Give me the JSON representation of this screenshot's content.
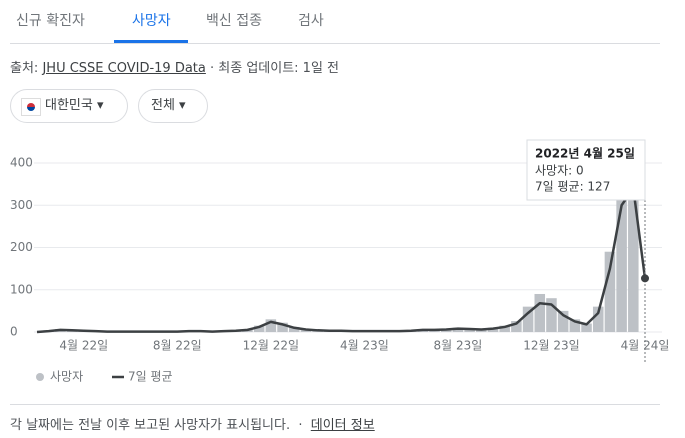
{
  "tabs": [
    "신규 확진자",
    "사망자",
    "백신 접종",
    "검사"
  ],
  "source": {
    "prefix": "출처:",
    "link": "JHU CSSE COVID-19 Data",
    "updated": "· 최종 업데이트: 1일 전"
  },
  "filters": [
    "대한민국",
    "전체"
  ],
  "tooltip": {
    "date": "2022년 4월 25일",
    "lines": [
      "사망자: 0",
      "7일 평균: 127"
    ]
  },
  "footer": {
    "note": "각 날짜에는 전날 이후 보고된 사망자가 표시됩니다.",
    "sep": "·",
    "link": "데이터 정보"
  },
  "chart_data": {
    "type": "bar-line",
    "categories": [
      null,
      null,
      null,
      null,
      "4월 22일",
      null,
      null,
      null,
      null,
      null,
      null,
      null,
      "8월 22일",
      null,
      null,
      null,
      null,
      null,
      null,
      null,
      "12월 22일",
      null,
      null,
      null,
      null,
      null,
      null,
      null,
      "4월 23일",
      null,
      null,
      null,
      null,
      null,
      null,
      null,
      "8월 23일",
      null,
      null,
      null,
      null,
      null,
      null,
      null,
      "12월 23일",
      null,
      null,
      null,
      null,
      null,
      null,
      null,
      "4월 24일"
    ],
    "series": [
      {
        "name": "사망자",
        "color": "#bdc1c6",
        "values": [
          0,
          4,
          7,
          5,
          4,
          3,
          1,
          2,
          1,
          1,
          2,
          1,
          1,
          3,
          2,
          1,
          3,
          4,
          7,
          15,
          30,
          22,
          12,
          7,
          5,
          3,
          4,
          2,
          3,
          2,
          3,
          2,
          4,
          6,
          7,
          8,
          10,
          9,
          7,
          10,
          15,
          26,
          60,
          90,
          80,
          50,
          30,
          20,
          60,
          190,
          380,
          360,
          0
        ]
      },
      {
        "name": "7일 평균",
        "color": "#3c4043",
        "values": [
          0,
          2,
          5,
          4,
          3,
          2,
          1,
          1,
          1,
          1,
          1,
          1,
          1,
          2,
          2,
          1,
          2,
          3,
          5,
          12,
          24,
          18,
          10,
          6,
          4,
          3,
          3,
          2,
          2,
          2,
          2,
          2,
          3,
          5,
          5,
          6,
          8,
          7,
          6,
          8,
          12,
          20,
          45,
          68,
          65,
          40,
          25,
          18,
          45,
          150,
          300,
          340,
          127
        ]
      }
    ],
    "ylim": [
      0,
      400
    ],
    "yticks": [
      0,
      100,
      200,
      300,
      400
    ],
    "grid": true
  }
}
